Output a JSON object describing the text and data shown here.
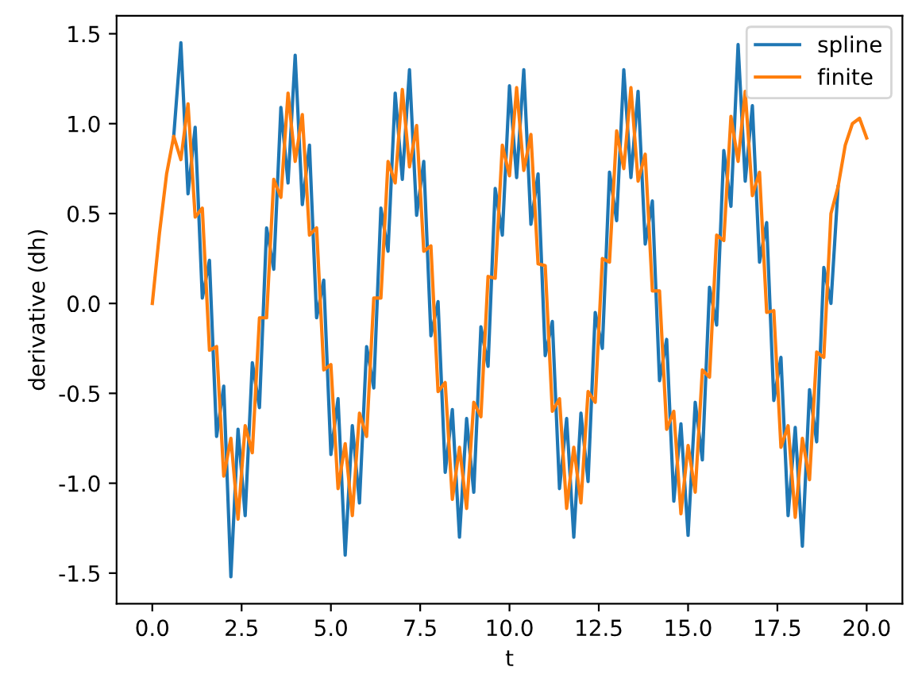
{
  "chart_data": {
    "type": "line",
    "xlabel": "t",
    "ylabel": "derivative (dh)",
    "x": [
      0,
      0.2,
      0.4,
      0.6,
      0.8,
      1.0,
      1.2,
      1.4,
      1.6,
      1.8,
      2.0,
      2.2,
      2.4,
      2.6,
      2.8,
      3.0,
      3.2,
      3.4,
      3.6,
      3.8,
      4.0,
      4.2,
      4.4,
      4.6,
      4.8,
      5.0,
      5.2,
      5.4,
      5.6,
      5.8,
      6.0,
      6.2,
      6.4,
      6.6,
      6.8,
      7.0,
      7.2,
      7.4,
      7.6,
      7.8,
      8.0,
      8.2,
      8.4,
      8.6,
      8.8,
      9.0,
      9.2,
      9.4,
      9.6,
      9.8,
      10.0,
      10.2,
      10.4,
      10.6,
      10.8,
      11.0,
      11.2,
      11.4,
      11.6,
      11.8,
      12.0,
      12.2,
      12.4,
      12.6,
      12.8,
      13.0,
      13.2,
      13.4,
      13.6,
      13.8,
      14.0,
      14.2,
      14.4,
      14.6,
      14.8,
      15.0,
      15.2,
      15.4,
      15.6,
      15.8,
      16.0,
      16.2,
      16.4,
      16.6,
      16.8,
      17.0,
      17.2,
      17.4,
      17.6,
      17.8,
      18.0,
      18.2,
      18.4,
      18.6,
      18.8,
      19.0,
      19.2,
      19.4,
      19.6,
      19.8,
      20.0
    ],
    "series": [
      {
        "name": "spline",
        "color": "#1f77b4",
        "values": [
          null,
          null,
          null,
          0.93,
          1.45,
          0.61,
          0.98,
          0.03,
          0.24,
          -0.74,
          -0.46,
          -1.52,
          -0.7,
          -1.18,
          -0.33,
          -0.58,
          0.42,
          0.19,
          1.09,
          0.67,
          1.38,
          0.55,
          0.88,
          -0.08,
          0.13,
          -0.84,
          -0.53,
          -1.4,
          -0.68,
          -1.11,
          -0.24,
          -0.47,
          0.53,
          0.29,
          1.17,
          0.69,
          1.3,
          0.49,
          0.79,
          -0.18,
          0.01,
          -0.94,
          -0.59,
          -1.3,
          -0.64,
          -1.05,
          -0.13,
          -0.35,
          0.64,
          0.38,
          1.21,
          0.7,
          1.3,
          0.44,
          0.72,
          -0.29,
          -0.1,
          -1.03,
          -0.64,
          -1.3,
          -0.61,
          -0.99,
          -0.05,
          -0.25,
          0.73,
          0.46,
          1.3,
          0.7,
          1.18,
          0.33,
          0.57,
          -0.43,
          -0.2,
          -1.1,
          -0.67,
          -1.29,
          -0.55,
          -0.87,
          0.09,
          -0.12,
          0.85,
          0.54,
          1.44,
          0.68,
          1.1,
          0.23,
          0.45,
          -0.54,
          -0.3,
          -1.18,
          -0.69,
          -1.35,
          -0.48,
          -0.77,
          0.2,
          0.0,
          0.65,
          null,
          null,
          null,
          null
        ]
      },
      {
        "name": "finite",
        "color": "#ff7f0e",
        "values": [
          0,
          0.39,
          0.72,
          0.93,
          0.8,
          1.11,
          0.48,
          0.53,
          -0.26,
          -0.24,
          -0.96,
          -0.75,
          -1.2,
          -0.68,
          -0.83,
          -0.08,
          -0.08,
          0.69,
          0.59,
          1.17,
          0.79,
          1.05,
          0.38,
          0.42,
          -0.37,
          -0.34,
          -1.03,
          -0.78,
          -1.18,
          -0.61,
          -0.74,
          0.03,
          0.03,
          0.79,
          0.67,
          1.19,
          0.76,
          0.99,
          0.29,
          0.32,
          -0.49,
          -0.44,
          -1.09,
          -0.8,
          -1.14,
          -0.55,
          -0.63,
          0.15,
          0.14,
          0.88,
          0.71,
          1.2,
          0.74,
          0.94,
          0.22,
          0.21,
          -0.6,
          -0.53,
          -1.14,
          -0.8,
          -1.11,
          -0.49,
          -0.55,
          0.25,
          0.23,
          0.96,
          0.75,
          1.2,
          0.68,
          0.83,
          0.07,
          0.07,
          -0.7,
          -0.6,
          -1.17,
          -0.79,
          -1.05,
          -0.37,
          -0.41,
          0.38,
          0.35,
          1.04,
          0.79,
          1.18,
          0.6,
          0.73,
          -0.05,
          -0.04,
          -0.8,
          -0.68,
          -1.19,
          -0.75,
          -0.98,
          -0.27,
          -0.3,
          0.5,
          0.65,
          0.88,
          1.0,
          1.03,
          0.92
        ]
      }
    ],
    "xlim": [
      -1,
      21
    ],
    "ylim": [
      -1.67,
      1.6
    ],
    "xticks": [
      {
        "value": 0,
        "label": "0.0"
      },
      2.5,
      {
        "value": 5,
        "label": "5.0"
      },
      7.5,
      {
        "value": 10,
        "label": "10.0"
      },
      12.5,
      {
        "value": 15,
        "label": "15.0"
      },
      17.5,
      {
        "value": 20,
        "label": "20.0"
      }
    ],
    "yticks": [
      -1.5,
      {
        "value": -1,
        "label": "-1.0"
      },
      -0.5,
      {
        "value": 0,
        "label": "0.0"
      },
      0.5,
      {
        "value": 1,
        "label": "1.0"
      },
      1.5
    ],
    "legend": "top right",
    "grid": false
  }
}
